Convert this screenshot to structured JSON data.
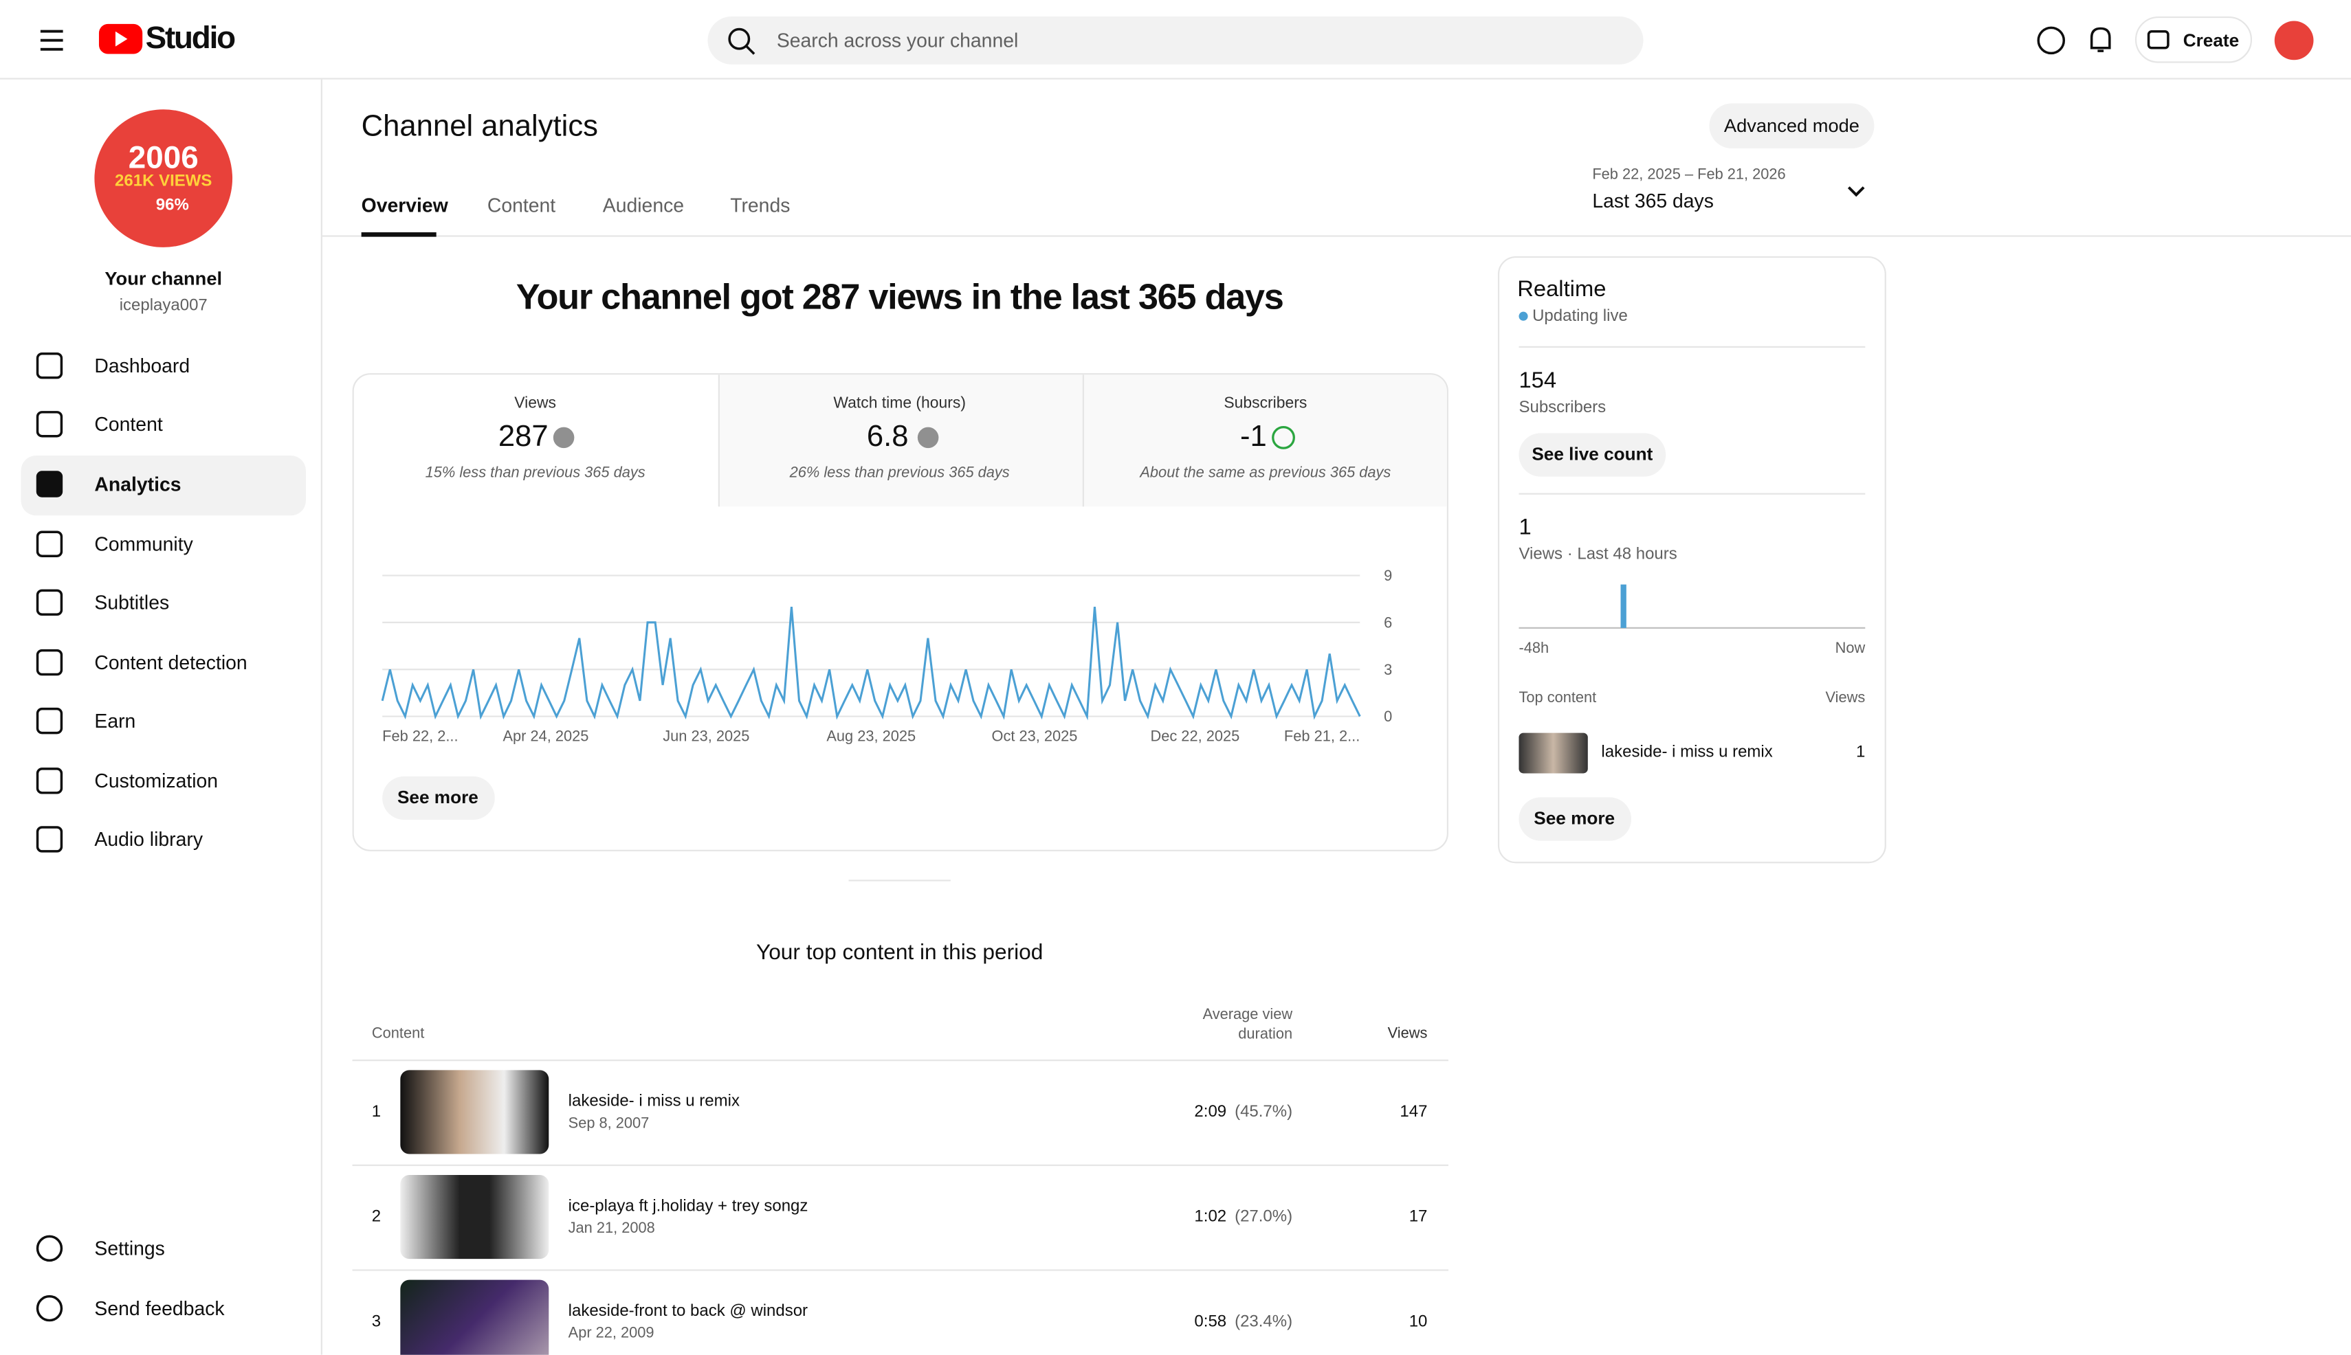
{
  "header": {
    "logo": "Studio",
    "search_placeholder": "Search across your channel",
    "create": "Create"
  },
  "sidebar": {
    "channel_art": [
      "2006",
      "261K VIEWS",
      "96%"
    ],
    "channel_name": "Your channel",
    "handle": "iceplaya007",
    "items": [
      "Dashboard",
      "Content",
      "Analytics",
      "Community",
      "Subtitles",
      "Content detection",
      "Earn",
      "Customization",
      "Audio library"
    ],
    "bottom_items": [
      "Settings",
      "Send feedback"
    ]
  },
  "page": {
    "title": "Channel analytics",
    "advanced_mode": "Advanced mode",
    "tabs": [
      "Overview",
      "Content",
      "Audience",
      "Trends"
    ],
    "date_range": "Feb 22, 2025 – Feb 21, 2026",
    "period": "Last 365 days",
    "headline": "Your channel got 287 views in the last 365 days",
    "see_more": "See more"
  },
  "summary": [
    {
      "label": "Views",
      "value": 287,
      "note": "15% less than previous 365 days"
    },
    {
      "label": "Watch time (hours)",
      "value": 6.8,
      "note": "26% less than previous 365 days"
    },
    {
      "label": "Subscribers",
      "value": -1,
      "note": "About the same as previous 365 days"
    }
  ],
  "realtime": {
    "title": "Realtime",
    "status": "Updating live",
    "subscribers": 154,
    "subscribers_label": "Subscribers",
    "see_live_count": "See live count",
    "views": 1,
    "views_label": "Views · Last 48 hours",
    "top_content_label": "Top content",
    "views_col": "Views",
    "top_item": {
      "title": "lakeside- i miss u remix",
      "views": 1
    },
    "see_more": "See more"
  },
  "top_content": {
    "title": "Your top content in this period",
    "columns": [
      "Content",
      "Average view duration",
      "Views"
    ],
    "rows": [
      {
        "rank": 1,
        "title": "lakeside- i miss u remix",
        "date": "Sep 8, 2007",
        "avg_duration": "2:09",
        "avg_pct": "(45.7%)",
        "views": 147
      },
      {
        "rank": 2,
        "title": "ice-playa ft j.holiday + trey songz",
        "date": "Jan 21, 2008",
        "avg_duration": "1:02",
        "avg_pct": "(27.0%)",
        "views": 17
      },
      {
        "rank": 3,
        "title": "lakeside-front to back @ windsor",
        "date": "Apr 22, 2009",
        "avg_duration": "0:58",
        "avg_pct": "(23.4%)",
        "views": 10
      }
    ]
  },
  "chart_data": [
    {
      "type": "line",
      "color": "#4ba0d4",
      "grid": true,
      "ylim": [
        0,
        9
      ],
      "yticks": [
        0,
        3,
        6,
        9
      ],
      "xtick_labels": [
        "Feb 22, 2...",
        "Apr 24, 2025",
        "Jun 23, 2025",
        "Aug 23, 2025",
        "Oct 23, 2025",
        "Dec 22, 2025",
        "Feb 21, 2..."
      ],
      "values": [
        1,
        3,
        1,
        0,
        2,
        1,
        2,
        0,
        1,
        2,
        0,
        1,
        3,
        0,
        1,
        2,
        0,
        1,
        3,
        1,
        0,
        2,
        1,
        0,
        1,
        3,
        5,
        1,
        0,
        2,
        1,
        0,
        2,
        3,
        1,
        6,
        6,
        2,
        5,
        1,
        0,
        2,
        3,
        1,
        2,
        1,
        0,
        1,
        2,
        3,
        1,
        0,
        2,
        1,
        7,
        1,
        0,
        2,
        1,
        3,
        0,
        1,
        2,
        1,
        3,
        1,
        0,
        2,
        1,
        2,
        0,
        1,
        5,
        1,
        0,
        2,
        1,
        3,
        1,
        0,
        2,
        1,
        0,
        3,
        1,
        2,
        1,
        0,
        2,
        1,
        0,
        2,
        1,
        0,
        7,
        1,
        2,
        6,
        1,
        3,
        1,
        0,
        2,
        1,
        3,
        2,
        1,
        0,
        2,
        1,
        3,
        1,
        0,
        2,
        1,
        3,
        1,
        2,
        0,
        1,
        2,
        1,
        3,
        0,
        1,
        4,
        1,
        2,
        1,
        0
      ]
    },
    {
      "type": "bar",
      "color": "#4ba0d4",
      "xtick_labels": [
        "-48h",
        "Now"
      ],
      "values": [
        0,
        0,
        0,
        0,
        0,
        0,
        0,
        0,
        0,
        0,
        0,
        0,
        0,
        0,
        1,
        0,
        0,
        0,
        0,
        0,
        0,
        0,
        0,
        0,
        0,
        0,
        0,
        0,
        0,
        0,
        0,
        0,
        0,
        0,
        0,
        0,
        0,
        0,
        0,
        0,
        0,
        0,
        0,
        0,
        0,
        0,
        0,
        0
      ]
    }
  ]
}
